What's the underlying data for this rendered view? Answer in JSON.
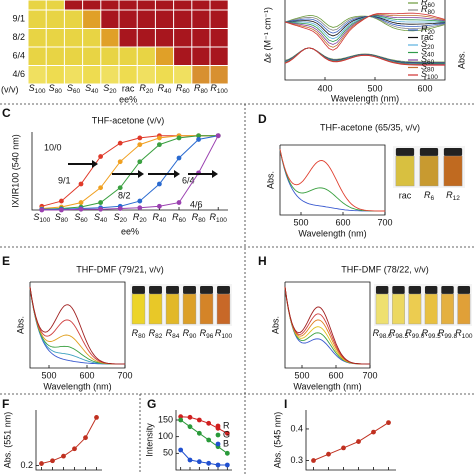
{
  "panels": {
    "B": {
      "rows": [
        "9/1",
        "8/2",
        "6/4",
        "4/6"
      ],
      "row_axis": "(v/v)",
      "columns": [
        "S100",
        "S80",
        "S60",
        "S40",
        "S20",
        "rac",
        "R20",
        "R40",
        "R60",
        "R80",
        "R100"
      ],
      "x_label": "ee%"
    },
    "CD": {
      "y_label": "Δε (M⁻¹ cm⁻¹)",
      "y2_label": "Abs.",
      "legend": [
        "R60",
        "R80",
        "R20",
        "rac",
        "S20",
        "S40",
        "S60",
        "S80",
        "S100"
      ],
      "legend_colors": [
        "#6a9a3a",
        "#888888",
        "#3b62c4",
        "#111111",
        "#5ab0e0",
        "#2f9a4a",
        "#8040a0",
        "#c07030",
        "#d03030"
      ],
      "xticks": [
        "400",
        "500",
        "600"
      ],
      "x_label": "Wavelength (nm)"
    },
    "D": {
      "letter": "D",
      "title": "THF-acetone (65/35, v/v)",
      "y_label": "Abs.",
      "xticks": [
        "500",
        "600",
        "700"
      ],
      "x_label": "Wavelength (nm)",
      "vials": [
        "rac",
        "R6",
        "R12"
      ]
    },
    "E": {
      "letter": "E",
      "title": "THF-DMF (79/21, v/v)",
      "y_label": "Abs.",
      "xticks": [
        "500",
        "600",
        "700"
      ],
      "x_label": "Wavelength (nm)",
      "vials": [
        "R80",
        "R82",
        "R84",
        "R90",
        "R96",
        "R100"
      ]
    },
    "H": {
      "letter": "H",
      "title": "THF-DMF (78/22, v/v)",
      "y_label": "Abs.",
      "xticks": [
        "500",
        "600",
        "700"
      ],
      "x_label": "Wavelength (nm)",
      "vials": [
        "R98.0",
        "R98.5",
        "R99.0",
        "R99.5",
        "R99.8",
        "R100"
      ]
    }
  },
  "chart_data": [
    {
      "type": "line",
      "letter": "C",
      "title": "THF-acetone (v/v)",
      "y_label": "IX/IR100 (540 nm)",
      "x_label": "ee%",
      "categories": [
        "S100",
        "S80",
        "S60",
        "S40",
        "S20",
        "R20",
        "R40",
        "R60",
        "R80",
        "R100"
      ],
      "ylim": [
        0,
        1.05
      ],
      "series": [
        {
          "name": "10/0",
          "color": "#e03a2a",
          "values": [
            0.05,
            0.12,
            0.35,
            0.72,
            0.9,
            0.97,
            1,
            1,
            1,
            1
          ]
        },
        {
          "name": "9/1",
          "color": "#f0a020",
          "values": [
            0.02,
            0.04,
            0.1,
            0.3,
            0.65,
            0.88,
            0.97,
            1,
            1,
            1
          ]
        },
        {
          "name": "8/2",
          "color": "#3aa040",
          "values": [
            0.01,
            0.02,
            0.04,
            0.1,
            0.3,
            0.65,
            0.88,
            0.97,
            1,
            1
          ]
        },
        {
          "name": "6/4",
          "color": "#2a6ad0",
          "values": [
            0.01,
            0.01,
            0.02,
            0.03,
            0.05,
            0.12,
            0.35,
            0.7,
            0.95,
            1
          ]
        },
        {
          "name": "4/6",
          "color": "#9a40b0",
          "values": [
            0,
            0,
            0.01,
            0.01,
            0.02,
            0.03,
            0.05,
            0.1,
            0.5,
            1
          ]
        }
      ]
    },
    {
      "type": "line",
      "letter": "F",
      "y_label": "Abs. (551 nm)",
      "categories": [
        null,
        null,
        null,
        null,
        null,
        null
      ],
      "values": [
        0.22,
        0.25,
        0.3,
        0.38,
        0.5,
        0.72
      ],
      "color": "#c03020",
      "ylim": [
        0.15,
        0.8
      ],
      "yticks": [
        0.2
      ]
    },
    {
      "type": "line",
      "letter": "G",
      "y_label": "Intensity",
      "categories": [
        null,
        null,
        null,
        null,
        null,
        null
      ],
      "ylim": [
        0,
        180
      ],
      "yticks": [
        50,
        100,
        150
      ],
      "series": [
        {
          "name": "R",
          "color": "#d02020",
          "values": [
            160,
            158,
            150,
            140,
            125,
            110
          ]
        },
        {
          "name": "G",
          "color": "#2a9a3a",
          "values": [
            150,
            130,
            110,
            90,
            70,
            50
          ]
        },
        {
          "name": "B",
          "color": "#2050d0",
          "values": [
            60,
            30,
            25,
            20,
            15,
            15
          ]
        }
      ]
    },
    {
      "type": "line",
      "letter": "I",
      "y_label": "Abs. (545 nm)",
      "categories": [
        null,
        null,
        null,
        null,
        null,
        null
      ],
      "values": [
        0.3,
        0.32,
        0.34,
        0.36,
        0.39,
        0.42
      ],
      "color": "#c03020",
      "ylim": [
        0.27,
        0.46
      ],
      "yticks": [
        0.3,
        0.4
      ]
    }
  ]
}
